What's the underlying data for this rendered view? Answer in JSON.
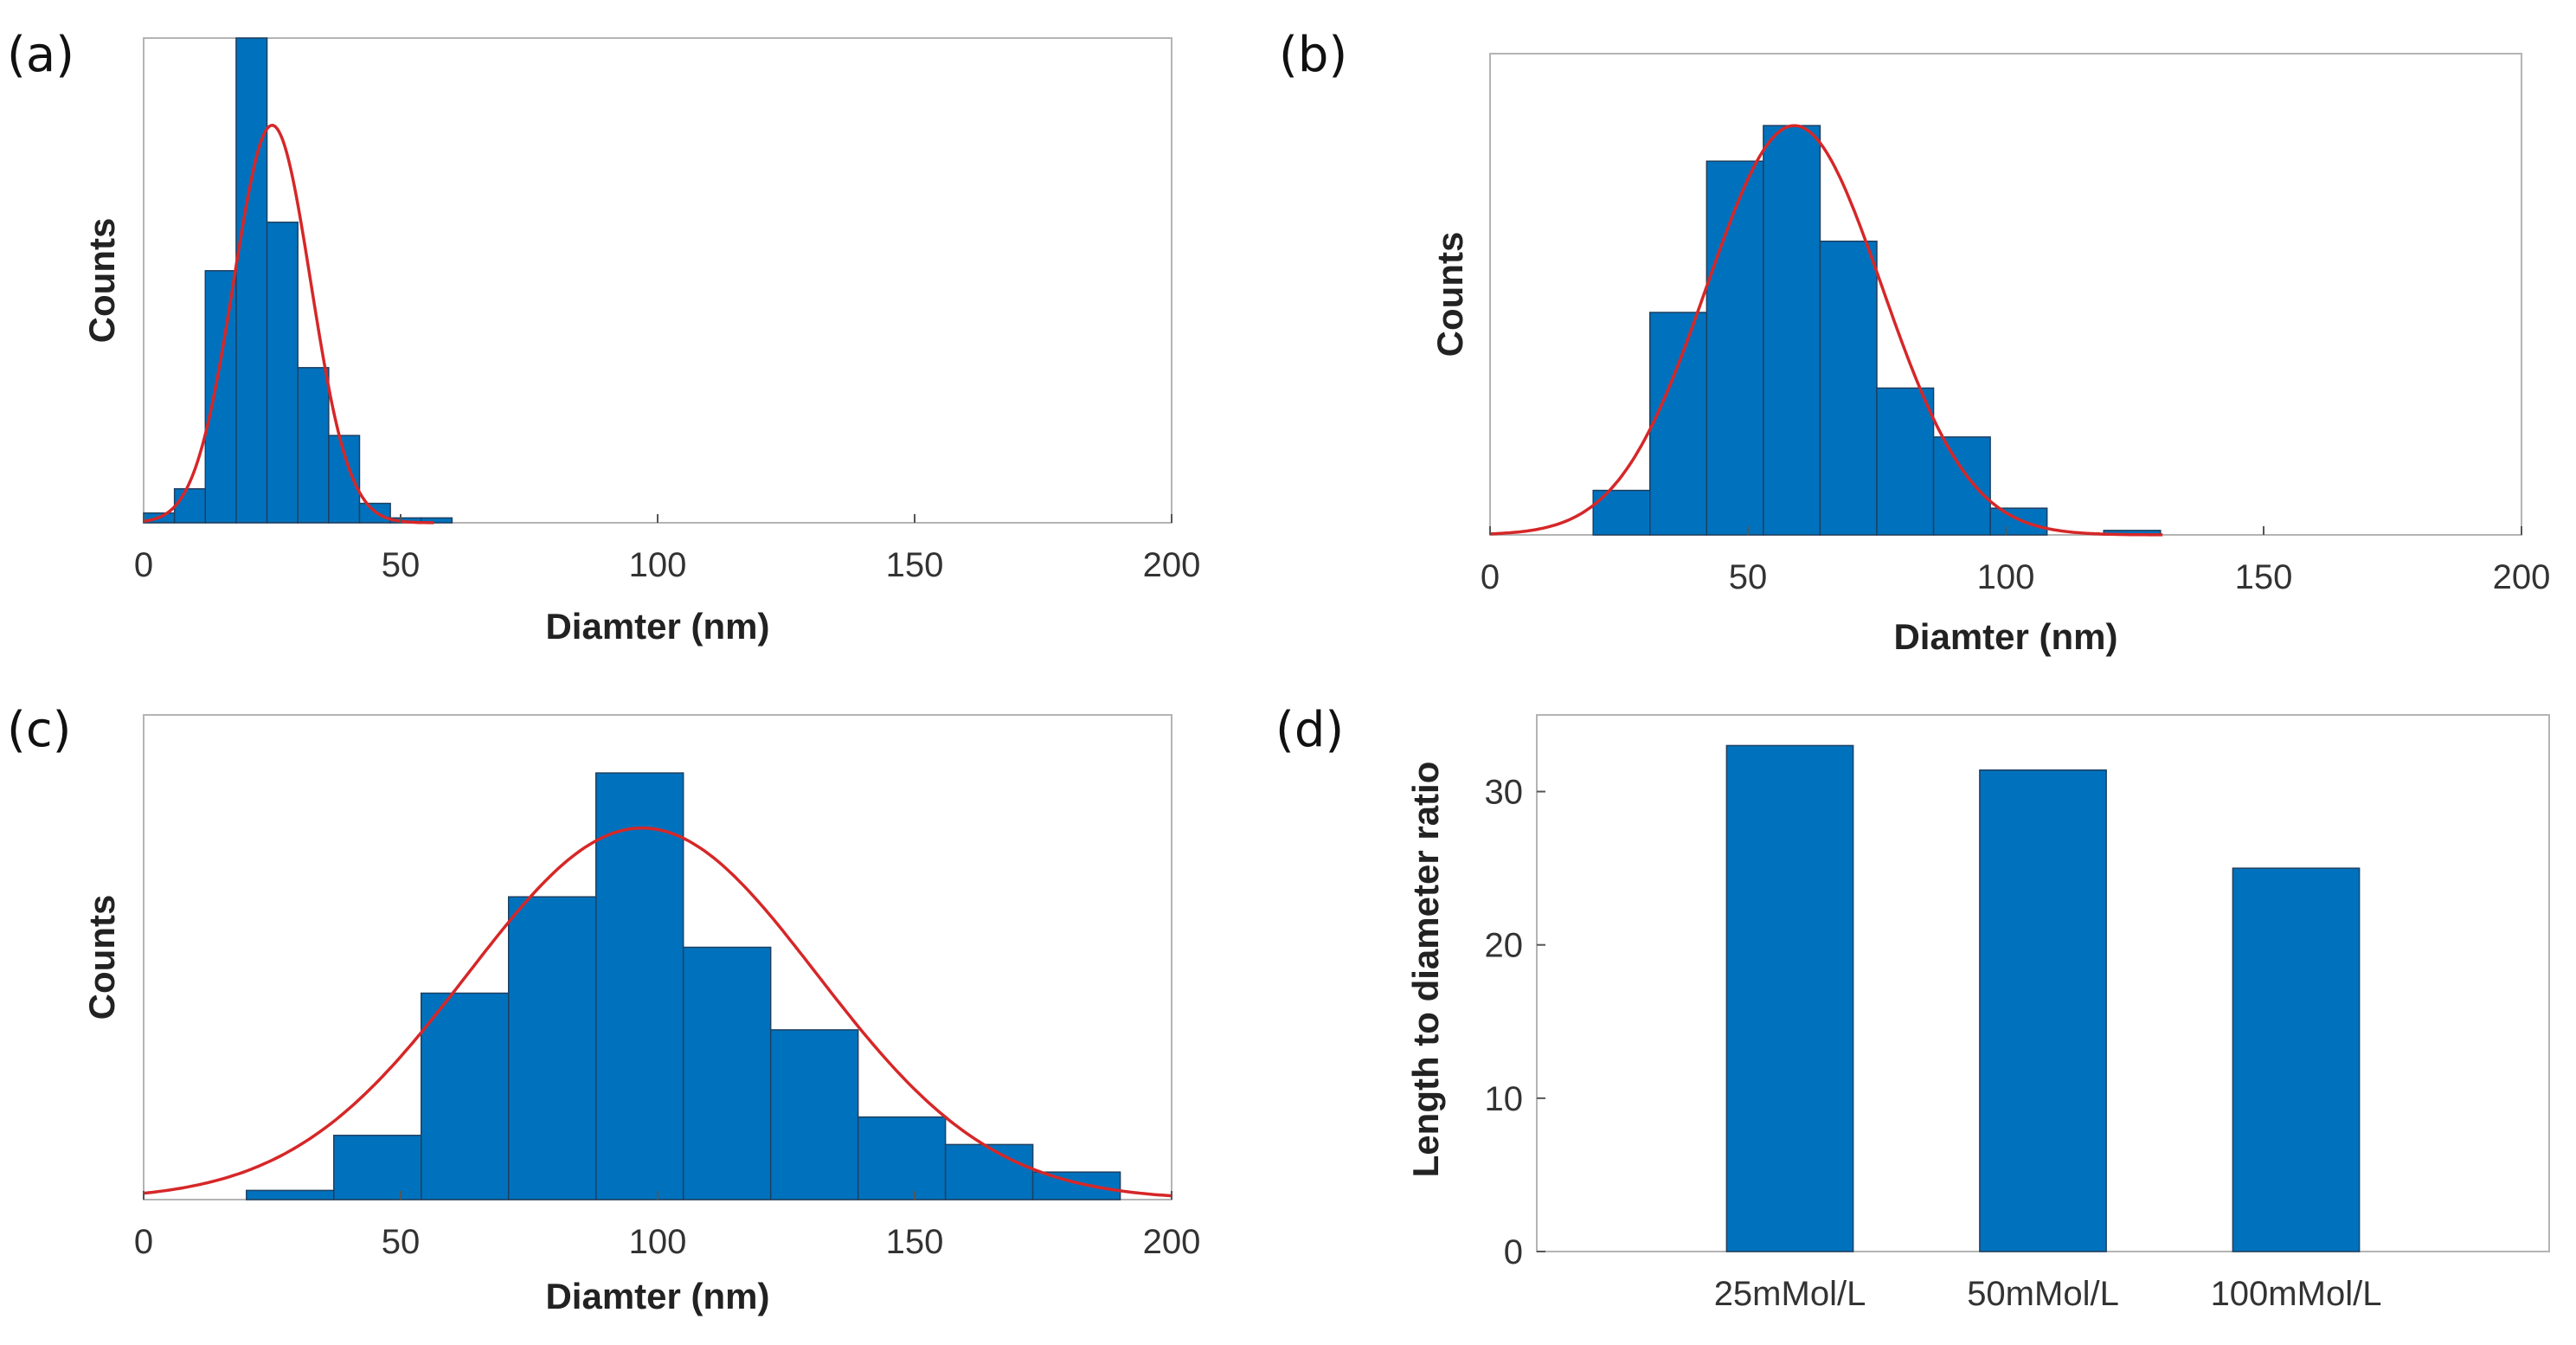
{
  "chart_data": [
    {
      "panel": "(a)",
      "type": "bar",
      "subtype": "histogram-with-normal-fit",
      "xlabel": "Diamter (nm)",
      "ylabel": "Counts",
      "xlim": [
        0,
        200
      ],
      "ylim": [
        0,
        100
      ],
      "xticks": [
        "0",
        "50",
        "100",
        "150",
        "200"
      ],
      "bin_edges": [
        0,
        6,
        12,
        18,
        24,
        30,
        36,
        42,
        48,
        54,
        60
      ],
      "counts": [
        2,
        7,
        52,
        100,
        62,
        32,
        18,
        4,
        1,
        1
      ],
      "fit": {
        "mean": 25,
        "sigma": 7.5,
        "peak": 82
      }
    },
    {
      "panel": "(b)",
      "type": "bar",
      "subtype": "histogram-with-normal-fit",
      "xlabel": "Diamter (nm)",
      "ylabel": "Counts",
      "xlim": [
        0,
        200
      ],
      "ylim": [
        0,
        100
      ],
      "xticks": [
        "0",
        "50",
        "100",
        "150",
        "200"
      ],
      "bin_edges": [
        20,
        31,
        42,
        53,
        64,
        75,
        86,
        97,
        108,
        119,
        130
      ],
      "counts": [
        10,
        50,
        84,
        92,
        66,
        33,
        22,
        6,
        0,
        1
      ],
      "fit": {
        "mean": 59,
        "sigma": 17,
        "peak": 92
      }
    },
    {
      "panel": "(c)",
      "type": "bar",
      "subtype": "histogram-with-normal-fit",
      "xlabel": "Diamter (nm)",
      "ylabel": "Counts",
      "xlim": [
        0,
        200
      ],
      "ylim": [
        0,
        100
      ],
      "xticks": [
        "0",
        "50",
        "100",
        "150",
        "200"
      ],
      "bin_edges": [
        20,
        37,
        54,
        71,
        88,
        105,
        122,
        139,
        156,
        173,
        190
      ],
      "counts": [
        2,
        14,
        45,
        66,
        93,
        55,
        37,
        18,
        12,
        6
      ],
      "fit": {
        "mean": 97,
        "sigma": 34,
        "peak": 81
      }
    },
    {
      "panel": "(d)",
      "type": "bar",
      "xlabel": "",
      "ylabel": "Length to diameter ratio",
      "categories": [
        "25mMol/L",
        "50mMol/L",
        "100mMol/L"
      ],
      "values": [
        33,
        31.4,
        25
      ],
      "ylim": [
        0,
        35
      ],
      "yticks": [
        "0",
        "10",
        "20",
        "30"
      ]
    }
  ],
  "color": {
    "bar": "#0072bd",
    "fit": "#d62728",
    "frame": "#b4b4b4"
  }
}
